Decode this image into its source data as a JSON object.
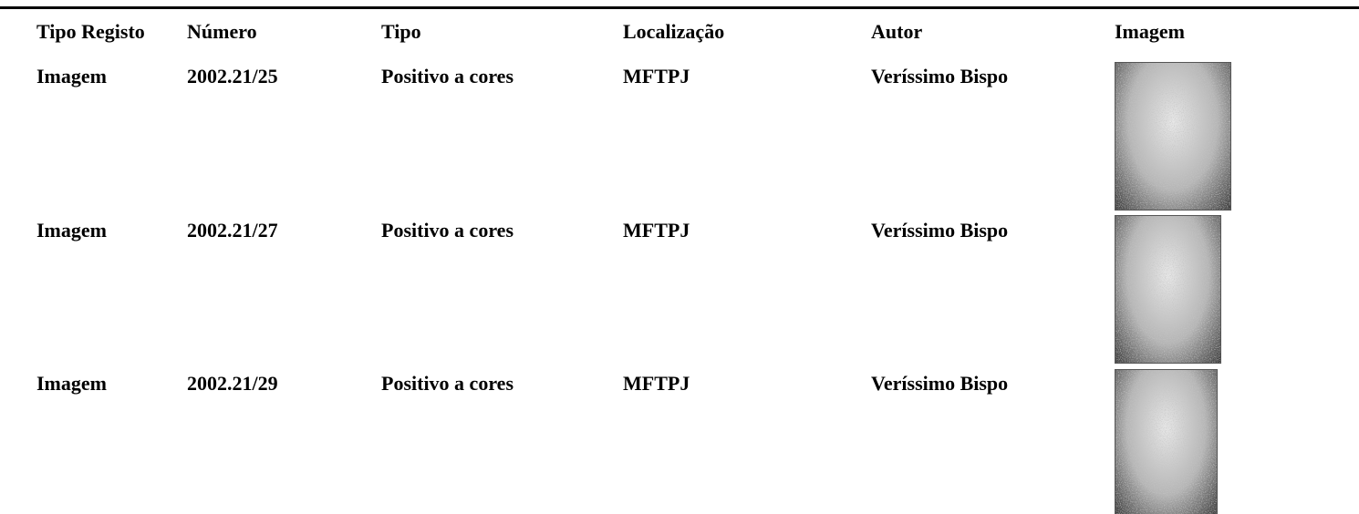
{
  "table": {
    "headers": [
      "Tipo Registo",
      "Número",
      "Tipo",
      "Localização",
      "Autor",
      "Imagem"
    ],
    "rows": [
      [
        "Imagem",
        "2002.21/25",
        "Positivo a cores",
        "MFTPJ",
        "Veríssimo Bispo"
      ],
      [
        "Imagem",
        "2002.21/27",
        "Positivo a cores",
        "MFTPJ",
        "Veríssimo Bispo"
      ],
      [
        "Imagem",
        "2002.21/29",
        "Positivo a cores",
        "MFTPJ",
        "Veríssimo Bispo"
      ]
    ]
  }
}
